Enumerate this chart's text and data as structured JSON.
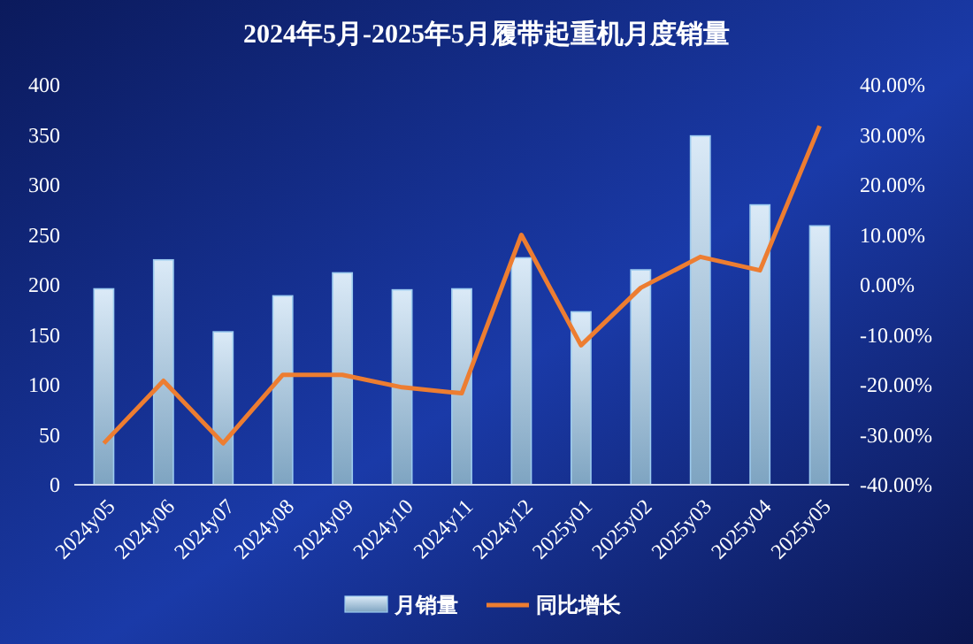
{
  "chart_data": {
    "type": "bar",
    "title": "2024年5月-2025年5月履带起重机月度销量",
    "categories": [
      "2024y05",
      "2024y06",
      "2024y07",
      "2024y08",
      "2024y09",
      "2024y10",
      "2024y11",
      "2024y12",
      "2025y01",
      "2025y02",
      "2025y03",
      "2025y04",
      "2025y05"
    ],
    "series": [
      {
        "name": "月销量",
        "color": "#9ccbef",
        "values": [
          196,
          225,
          153,
          189,
          212,
          195,
          196,
          227,
          173,
          215,
          349,
          280,
          259
        ]
      },
      {
        "name": "同比增长",
        "type": "line",
        "axis": "y2",
        "color": "#ed7d31",
        "values": [
          -31.7,
          -19.2,
          -31.7,
          -18,
          -18,
          -20.5,
          -21.7,
          10,
          -12.1,
          -0.6,
          5.6,
          2.9,
          31.8
        ]
      }
    ],
    "ylim": [
      0,
      400
    ],
    "yticks": [
      0,
      50,
      100,
      150,
      200,
      250,
      300,
      350,
      400
    ],
    "y2lim": [
      -40,
      40
    ],
    "y2ticks": [
      {
        "value": -40,
        "label": "-40.00%"
      },
      {
        "value": -30,
        "label": "-30.00%"
      },
      {
        "value": -20,
        "label": "-20.00%"
      },
      {
        "value": -10,
        "label": "-10.00%"
      },
      {
        "value": 0,
        "label": "0.00%"
      },
      {
        "value": 10,
        "label": "10.00%"
      },
      {
        "value": 20,
        "label": "20.00%"
      },
      {
        "value": 30,
        "label": "30.00%"
      },
      {
        "value": 40,
        "label": "40.00%"
      }
    ],
    "legend": "bottom",
    "grid": false,
    "marker": "none"
  }
}
